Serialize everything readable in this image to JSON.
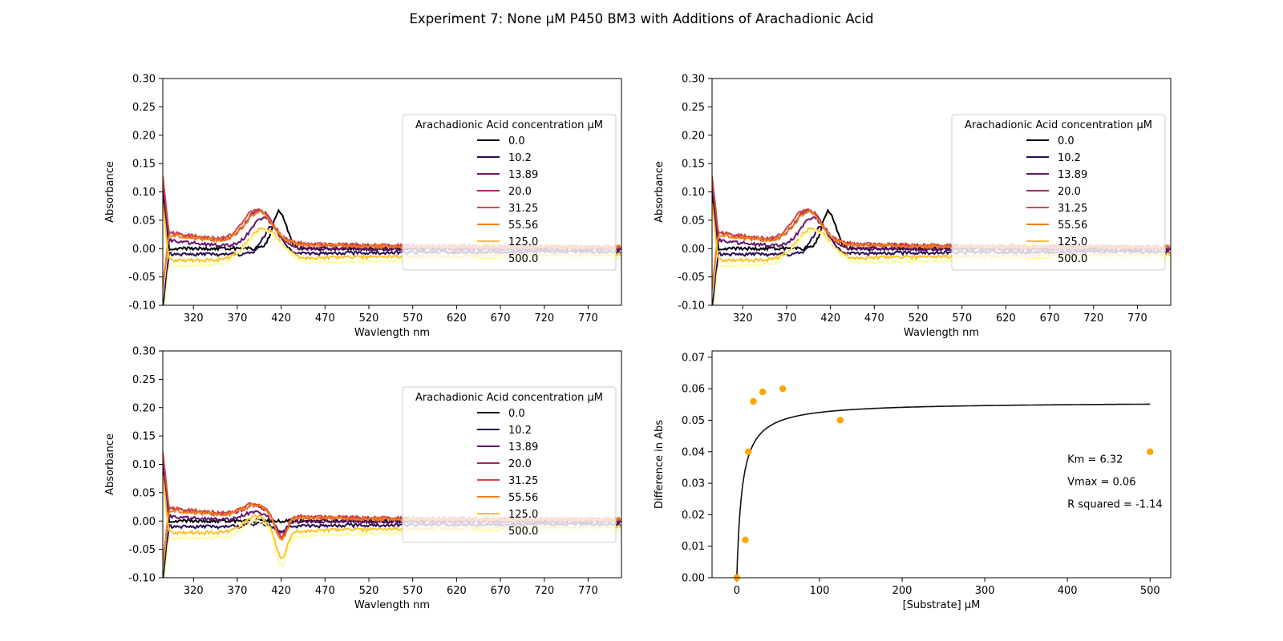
{
  "figure": {
    "title": "Experiment 7: None μM P450 BM3 with Additions of Arachadionic Acid"
  },
  "colors": {
    "series": [
      "#000004",
      "#280b54",
      "#65156e",
      "#9f2a63",
      "#d44842",
      "#f57d15",
      "#fac228",
      "#fcffa4"
    ],
    "fit_line": "#111111",
    "points": "#ffa500"
  },
  "chart_data": [
    {
      "type": "line",
      "panel": "raw spectra",
      "xlabel": "Wavlength nm",
      "ylabel": "Absorbance",
      "xlim": [
        285,
        808
      ],
      "ylim": [
        -0.1,
        0.3
      ],
      "xticks": [
        320,
        370,
        420,
        470,
        520,
        570,
        620,
        670,
        720,
        770
      ],
      "yticks": [
        -0.1,
        -0.05,
        0.0,
        0.05,
        0.1,
        0.15,
        0.2,
        0.25,
        0.3
      ],
      "legend": {
        "title": "Arachadionic Acid concentration µM",
        "placement": "center-right"
      },
      "series": [
        {
          "name": "0.0",
          "base": 0.0,
          "shift": 0.0,
          "peak": 418,
          "amp": 0.066,
          "width": 11,
          "trough": 0.0
        },
        {
          "name": "10.2",
          "base": -0.02,
          "shift": 0.01,
          "peak": 410,
          "amp": 0.05,
          "width": 14,
          "trough": 0.0
        },
        {
          "name": "13.89",
          "base": -0.005,
          "shift": 0.018,
          "peak": 400,
          "amp": 0.052,
          "width": 20,
          "trough": 0.0
        },
        {
          "name": "20.0",
          "base": 0.01,
          "shift": 0.015,
          "peak": 395,
          "amp": 0.057,
          "width": 22,
          "trough": 0.0
        },
        {
          "name": "31.25",
          "base": 0.012,
          "shift": 0.015,
          "peak": 393,
          "amp": 0.058,
          "width": 22,
          "trough": 0.0
        },
        {
          "name": "55.56",
          "base": 0.008,
          "shift": 0.015,
          "peak": 395,
          "amp": 0.055,
          "width": 22,
          "trough": 0.0
        },
        {
          "name": "125.0",
          "base": -0.04,
          "shift": 0.02,
          "peak": 400,
          "amp": 0.055,
          "width": 25,
          "trough": 0.0
        },
        {
          "name": "500.0",
          "base": -0.06,
          "shift": 0.03,
          "peak": 400,
          "amp": 0.06,
          "width": 28,
          "trough": 0.0
        }
      ]
    },
    {
      "type": "line",
      "panel": "raw spectra (duplicate)",
      "xlabel": "Wavlength nm",
      "ylabel": "Absorbance",
      "xlim": [
        285,
        808
      ],
      "ylim": [
        -0.1,
        0.3
      ],
      "xticks": [
        320,
        370,
        420,
        470,
        520,
        570,
        620,
        670,
        720,
        770
      ],
      "yticks": [
        -0.1,
        -0.05,
        0.0,
        0.05,
        0.1,
        0.15,
        0.2,
        0.25,
        0.3
      ],
      "legend": {
        "title": "Arachadionic Acid concentration µM",
        "placement": "center-right"
      },
      "series": [
        {
          "name": "0.0",
          "base": 0.0,
          "shift": 0.0,
          "peak": 418,
          "amp": 0.066,
          "width": 11,
          "trough": 0.0
        },
        {
          "name": "10.2",
          "base": -0.02,
          "shift": 0.01,
          "peak": 410,
          "amp": 0.05,
          "width": 14,
          "trough": 0.0
        },
        {
          "name": "13.89",
          "base": -0.005,
          "shift": 0.018,
          "peak": 400,
          "amp": 0.052,
          "width": 20,
          "trough": 0.0
        },
        {
          "name": "20.0",
          "base": 0.01,
          "shift": 0.015,
          "peak": 395,
          "amp": 0.057,
          "width": 22,
          "trough": 0.0
        },
        {
          "name": "31.25",
          "base": 0.012,
          "shift": 0.015,
          "peak": 393,
          "amp": 0.058,
          "width": 22,
          "trough": 0.0
        },
        {
          "name": "55.56",
          "base": 0.008,
          "shift": 0.015,
          "peak": 395,
          "amp": 0.055,
          "width": 22,
          "trough": 0.0
        },
        {
          "name": "125.0",
          "base": -0.04,
          "shift": 0.02,
          "peak": 400,
          "amp": 0.055,
          "width": 25,
          "trough": 0.0
        },
        {
          "name": "500.0",
          "base": -0.06,
          "shift": 0.03,
          "peak": 400,
          "amp": 0.06,
          "width": 28,
          "trough": 0.0
        }
      ]
    },
    {
      "type": "line",
      "panel": "difference spectra",
      "xlabel": "Wavlength nm",
      "ylabel": "Absorbance",
      "xlim": [
        285,
        808
      ],
      "ylim": [
        -0.1,
        0.3
      ],
      "xticks": [
        320,
        370,
        420,
        470,
        520,
        570,
        620,
        670,
        720,
        770
      ],
      "yticks": [
        -0.1,
        -0.05,
        0.0,
        0.05,
        0.1,
        0.15,
        0.2,
        0.25,
        0.3
      ],
      "legend": {
        "title": "Arachadionic Acid concentration µM",
        "placement": "center-right"
      },
      "series": [
        {
          "name": "0.0",
          "base": 0.0,
          "shift": 0.0,
          "peak": 390,
          "amp": 0.0,
          "width": 20,
          "trough": 0.0
        },
        {
          "name": "10.2",
          "base": -0.02,
          "shift": 0.01,
          "peak": 395,
          "amp": 0.005,
          "width": 18,
          "trough": -0.01
        },
        {
          "name": "13.89",
          "base": -0.005,
          "shift": 0.012,
          "peak": 390,
          "amp": 0.015,
          "width": 18,
          "trough": -0.02
        },
        {
          "name": "20.0",
          "base": 0.01,
          "shift": 0.01,
          "peak": 390,
          "amp": 0.018,
          "width": 18,
          "trough": -0.035
        },
        {
          "name": "31.25",
          "base": 0.012,
          "shift": 0.01,
          "peak": 390,
          "amp": 0.02,
          "width": 18,
          "trough": -0.04
        },
        {
          "name": "55.56",
          "base": 0.008,
          "shift": 0.01,
          "peak": 390,
          "amp": 0.02,
          "width": 18,
          "trough": -0.04
        },
        {
          "name": "125.0",
          "base": -0.04,
          "shift": 0.02,
          "peak": 392,
          "amp": 0.028,
          "width": 20,
          "trough": -0.05
        },
        {
          "name": "500.0",
          "base": -0.06,
          "shift": 0.03,
          "peak": 392,
          "amp": 0.03,
          "width": 20,
          "trough": -0.055
        }
      ]
    },
    {
      "type": "scatter",
      "panel": "Michaelis-Menten fit",
      "xlabel": "[Substrate] µM",
      "ylabel": "Difference in Abs",
      "xlim": [
        -30,
        525
      ],
      "ylim": [
        0,
        0.072
      ],
      "xticks": [
        0,
        100,
        200,
        300,
        400,
        500
      ],
      "yticks": [
        0.0,
        0.01,
        0.02,
        0.03,
        0.04,
        0.05,
        0.06,
        0.07
      ],
      "points": [
        {
          "x": 0.0,
          "y": 0.0
        },
        {
          "x": 10.2,
          "y": 0.012
        },
        {
          "x": 13.89,
          "y": 0.04
        },
        {
          "x": 20.0,
          "y": 0.056
        },
        {
          "x": 31.25,
          "y": 0.059
        },
        {
          "x": 55.56,
          "y": 0.06
        },
        {
          "x": 125.0,
          "y": 0.05
        },
        {
          "x": 500.0,
          "y": 0.04
        }
      ],
      "fit": {
        "Km": 6.32,
        "Vmax": 0.0558,
        "x_start": 0,
        "x_end": 500
      },
      "annotations": [
        "Km = 6.32",
        "Vmax = 0.06",
        "R squared = -1.14"
      ]
    }
  ]
}
